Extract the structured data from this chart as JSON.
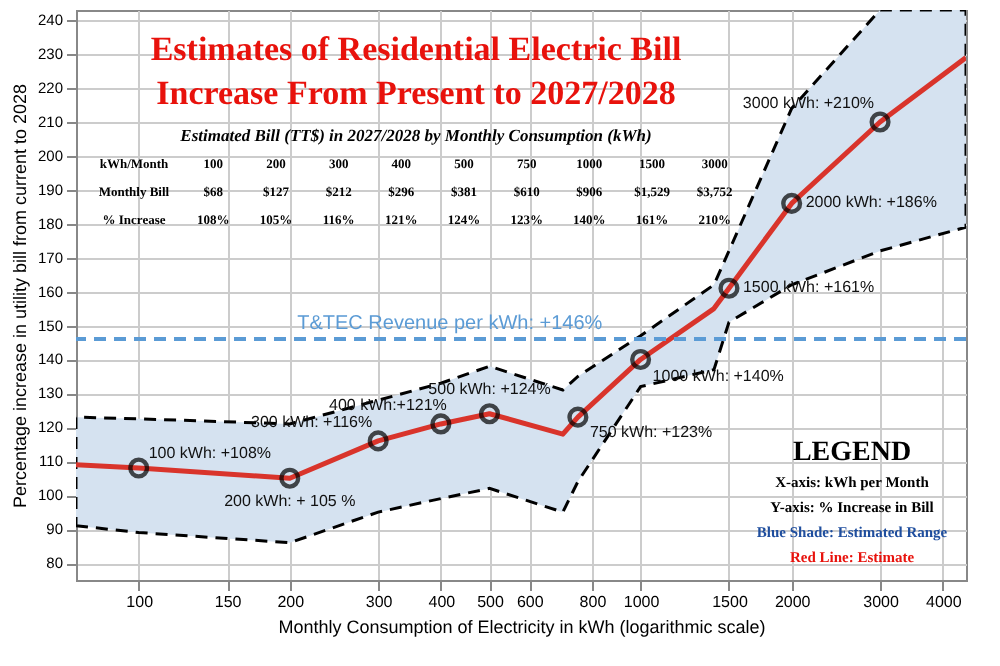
{
  "chart_data": {
    "type": "line",
    "title": "Estimates of Residential Electric Bill Increase From Present to 2027/2028",
    "subtitle": "Estimated Bill (TT$) in 2027/2028 by Monthly Consumption (kWh)",
    "xlabel": "Monthly Consumption of Electricity in kWh (logarithmic scale)",
    "ylabel": "Percentage increase in utility bill from current to 2028",
    "log": "x",
    "grid": true,
    "xlim": [
      75,
      4450
    ],
    "xticks": [
      100,
      150,
      200,
      300,
      400,
      500,
      600,
      800,
      1000,
      1500,
      2000,
      3000,
      4000
    ],
    "ylim": [
      75,
      243
    ],
    "yticks": [
      80,
      90,
      100,
      110,
      120,
      130,
      140,
      150,
      160,
      170,
      180,
      190,
      200,
      210,
      220,
      230,
      240
    ],
    "series": [
      {
        "color": "#d9342b",
        "line_style": "solid",
        "marker": "none",
        "x": [
          75,
          100,
          200,
          300,
          400,
          500,
          700,
          750,
          1000,
          1400,
          1500,
          2000,
          3000,
          4450
        ],
        "values": [
          109,
          108,
          105,
          116,
          121,
          124,
          118,
          123,
          140,
          155,
          161,
          186,
          210,
          229
        ],
        "lower": [
          91,
          89,
          86,
          95,
          99,
          102,
          95,
          104,
          132,
          137,
          151,
          162,
          172,
          179
        ],
        "upper": [
          123,
          122.5,
          121,
          128,
          133,
          138,
          131,
          135,
          147,
          162,
          172,
          214,
          243,
          243
        ]
      },
      {
        "type": "scatter",
        "color": "#000000",
        "marker": "circle",
        "x": [
          100,
          200,
          300,
          400,
          500,
          750,
          1000,
          1500,
          2000,
          3000
        ],
        "values": [
          108,
          105,
          116,
          121,
          124,
          123,
          140,
          161,
          186,
          210
        ]
      }
    ],
    "ref_lines": [
      {
        "axis": "y",
        "value": 146,
        "label": "T&TEC Revenue per kWh: +146%",
        "color": "#5b9bd5",
        "line_style": "dashed"
      }
    ],
    "annotations": [
      {
        "text": "100 kWh: +108%",
        "x": 100,
        "y": 108
      },
      {
        "text": "200 kWh: + 105 %",
        "x": 200,
        "y": 105
      },
      {
        "text": "300 kWh: +116%",
        "x": 300,
        "y": 116
      },
      {
        "text": "400 kWh:+121%",
        "x": 400,
        "y": 121
      },
      {
        "text": "500 kWh: +124%",
        "x": 500,
        "y": 124
      },
      {
        "text": "750 kWh: +123%",
        "x": 750,
        "y": 123
      },
      {
        "text": "1000 kWh: +140%",
        "x": 1000,
        "y": 140
      },
      {
        "text": "1500 kWh: +161%",
        "x": 1500,
        "y": 161
      },
      {
        "text": "2000 kWh: +186%",
        "x": 2000,
        "y": 186
      },
      {
        "text": "3000 kWh: +210%",
        "x": 3000,
        "y": 210
      },
      "kWh/Month",
      "100",
      "200",
      "300",
      "400",
      "500",
      "750",
      "1000",
      "1500",
      "3000",
      "Monthly Bill",
      "$68",
      "$127",
      "$212",
      "$296",
      "$381",
      "$610",
      "$906",
      "$1,529",
      "$3,752",
      "% Increase",
      "108%",
      "105%",
      "116%",
      "121%",
      "124%",
      "123%",
      "140%",
      "161%",
      "210%",
      "LEGEND",
      "X-axis: kWh per Month",
      "Y-axis: % Increase in Bill",
      "Blue Shade: Estimated Range",
      "Red Line: Estimate"
    ]
  }
}
